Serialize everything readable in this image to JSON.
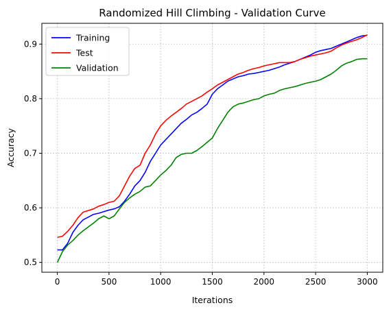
{
  "chart_data": {
    "type": "line",
    "title": "Randomized Hill Climbing - Validation Curve",
    "xlabel": "Iterations",
    "ylabel": "Accuracy",
    "xlim": [
      -150,
      3150
    ],
    "ylim": [
      0.482,
      0.938
    ],
    "xticks": [
      0,
      500,
      1000,
      1500,
      2000,
      2500,
      3000
    ],
    "yticks": [
      0.5,
      0.6,
      0.7,
      0.8,
      0.9
    ],
    "xtick_labels": [
      "0",
      "500",
      "1000",
      "1500",
      "2000",
      "2500",
      "3000"
    ],
    "ytick_labels": [
      "0.5",
      "0.6",
      "0.7",
      "0.8",
      "0.9"
    ],
    "grid": true,
    "legend_position": "top-left",
    "series": [
      {
        "name": "Training",
        "color": "#0000ff",
        "x": [
          0,
          50,
          100,
          150,
          200,
          250,
          300,
          350,
          400,
          450,
          500,
          550,
          600,
          650,
          700,
          750,
          800,
          850,
          900,
          950,
          1000,
          1050,
          1100,
          1150,
          1200,
          1250,
          1300,
          1350,
          1400,
          1450,
          1500,
          1550,
          1600,
          1650,
          1700,
          1750,
          1800,
          1850,
          1900,
          1950,
          2000,
          2050,
          2100,
          2150,
          2200,
          2250,
          2300,
          2350,
          2400,
          2450,
          2500,
          2550,
          2600,
          2650,
          2700,
          2750,
          2800,
          2850,
          2900,
          2950,
          3000
        ],
        "y": [
          0.523,
          0.523,
          0.535,
          0.555,
          0.568,
          0.578,
          0.583,
          0.588,
          0.59,
          0.593,
          0.596,
          0.598,
          0.602,
          0.612,
          0.625,
          0.64,
          0.65,
          0.665,
          0.685,
          0.7,
          0.715,
          0.725,
          0.735,
          0.745,
          0.755,
          0.762,
          0.77,
          0.775,
          0.782,
          0.79,
          0.808,
          0.818,
          0.825,
          0.832,
          0.836,
          0.84,
          0.842,
          0.845,
          0.846,
          0.848,
          0.85,
          0.852,
          0.855,
          0.858,
          0.862,
          0.865,
          0.868,
          0.872,
          0.876,
          0.88,
          0.885,
          0.888,
          0.89,
          0.892,
          0.896,
          0.9,
          0.904,
          0.908,
          0.912,
          0.915,
          0.916
        ]
      },
      {
        "name": "Test",
        "color": "#ff0000",
        "x": [
          0,
          50,
          100,
          150,
          200,
          250,
          300,
          350,
          400,
          450,
          500,
          550,
          600,
          650,
          700,
          750,
          800,
          850,
          900,
          950,
          1000,
          1050,
          1100,
          1150,
          1200,
          1250,
          1300,
          1350,
          1400,
          1450,
          1500,
          1550,
          1600,
          1650,
          1700,
          1750,
          1800,
          1850,
          1900,
          1950,
          2000,
          2050,
          2100,
          2150,
          2200,
          2250,
          2300,
          2350,
          2400,
          2450,
          2500,
          2550,
          2600,
          2650,
          2700,
          2750,
          2800,
          2850,
          2900,
          2950,
          3000
        ],
        "y": [
          0.546,
          0.548,
          0.557,
          0.568,
          0.582,
          0.592,
          0.595,
          0.598,
          0.603,
          0.606,
          0.61,
          0.612,
          0.622,
          0.64,
          0.658,
          0.672,
          0.678,
          0.7,
          0.715,
          0.735,
          0.75,
          0.76,
          0.768,
          0.775,
          0.782,
          0.79,
          0.795,
          0.8,
          0.805,
          0.812,
          0.818,
          0.825,
          0.83,
          0.835,
          0.84,
          0.845,
          0.848,
          0.852,
          0.855,
          0.857,
          0.86,
          0.862,
          0.864,
          0.866,
          0.866,
          0.866,
          0.868,
          0.872,
          0.875,
          0.878,
          0.88,
          0.882,
          0.884,
          0.887,
          0.893,
          0.898,
          0.902,
          0.905,
          0.908,
          0.912,
          0.917
        ]
      },
      {
        "name": "Validation",
        "color": "#008000",
        "x": [
          0,
          50,
          100,
          150,
          200,
          250,
          300,
          350,
          400,
          450,
          500,
          550,
          600,
          650,
          700,
          750,
          800,
          850,
          900,
          950,
          1000,
          1050,
          1100,
          1150,
          1200,
          1250,
          1300,
          1350,
          1400,
          1450,
          1500,
          1550,
          1600,
          1650,
          1700,
          1750,
          1800,
          1850,
          1900,
          1950,
          2000,
          2050,
          2100,
          2150,
          2200,
          2250,
          2300,
          2350,
          2400,
          2450,
          2500,
          2550,
          2600,
          2650,
          2700,
          2750,
          2800,
          2850,
          2900,
          2950,
          3000
        ],
        "y": [
          0.5,
          0.52,
          0.532,
          0.54,
          0.55,
          0.558,
          0.565,
          0.572,
          0.58,
          0.585,
          0.58,
          0.585,
          0.598,
          0.61,
          0.618,
          0.625,
          0.63,
          0.638,
          0.64,
          0.65,
          0.66,
          0.668,
          0.678,
          0.692,
          0.698,
          0.7,
          0.7,
          0.705,
          0.712,
          0.72,
          0.728,
          0.745,
          0.76,
          0.775,
          0.785,
          0.79,
          0.792,
          0.795,
          0.798,
          0.8,
          0.805,
          0.808,
          0.81,
          0.815,
          0.818,
          0.82,
          0.822,
          0.825,
          0.828,
          0.83,
          0.832,
          0.835,
          0.84,
          0.845,
          0.852,
          0.86,
          0.865,
          0.868,
          0.872,
          0.873,
          0.873
        ]
      }
    ]
  }
}
